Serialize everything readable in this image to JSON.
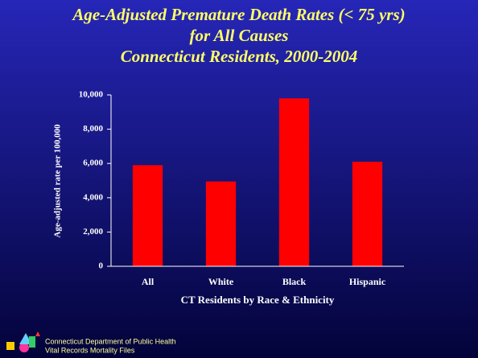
{
  "chart_data": {
    "type": "bar",
    "title": [
      "Age-Adjusted Premature Death Rates (< 75 yrs)",
      "for All Causes",
      "Connecticut Residents, 2000-2004"
    ],
    "x_label": "CT Residents by Race & Ethnicity",
    "y_label": "Age-adjusted rate per 100,000",
    "categories": [
      "All",
      "White",
      "Black",
      "Hispanic"
    ],
    "values": [
      5900,
      4950,
      9800,
      6100
    ],
    "color": "#ff0000",
    "ylim": [
      0,
      10000
    ],
    "yticks": [
      0,
      {
        "value": 2000,
        "label": "2,000"
      },
      {
        "value": 4000,
        "label": "4,000"
      },
      {
        "value": 6000,
        "label": "6,000"
      },
      {
        "value": 8000,
        "label": "8,000"
      },
      {
        "value": 10000,
        "label": "10,000"
      }
    ],
    "grid": false
  },
  "footer": [
    "Connecticut Department of Public Health",
    "Vital Records Mortality Files"
  ]
}
